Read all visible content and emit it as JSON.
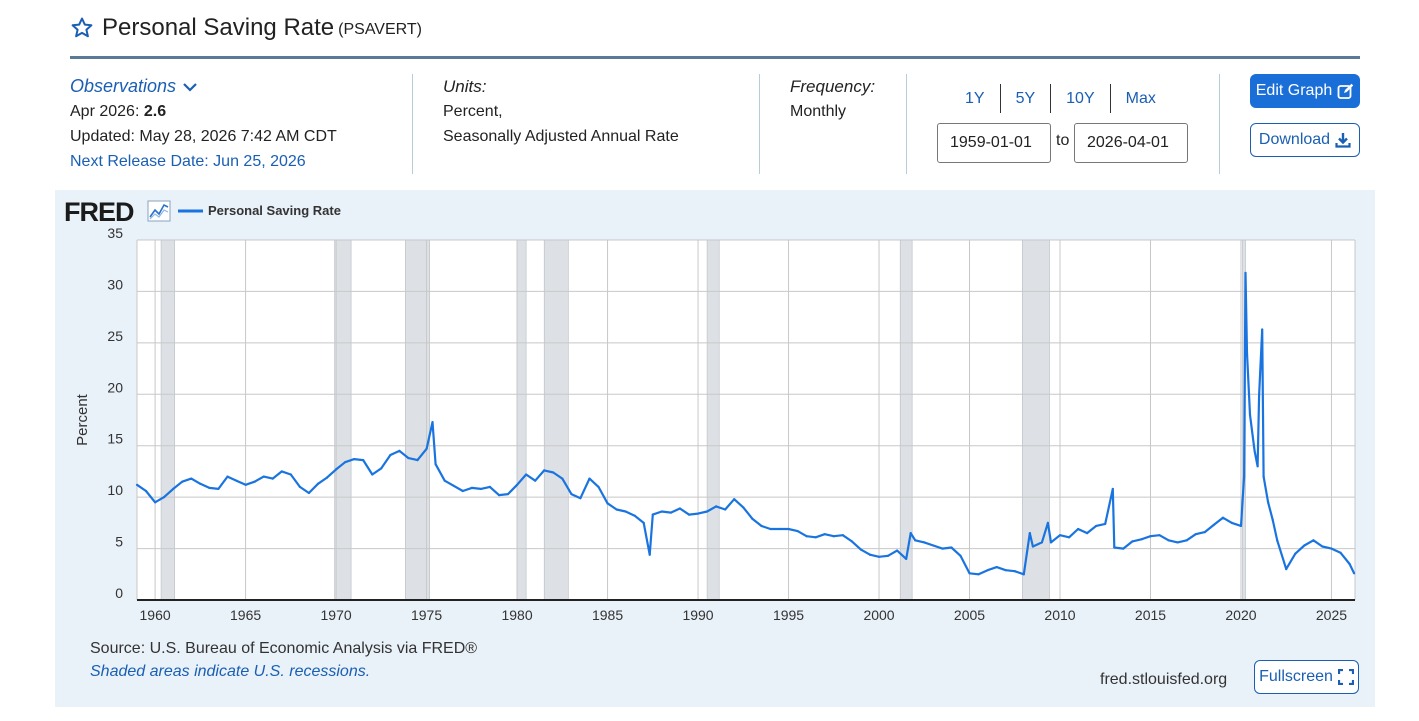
{
  "header": {
    "title": "Personal Saving Rate",
    "series_id": "(PSAVERT)"
  },
  "observations": {
    "toggle_label": "Observations",
    "latest_period": "Apr 2026:",
    "latest_value": "2.6",
    "updated": "Updated: May 28, 2026 7:42 AM CDT",
    "next_release": "Next Release Date: Jun 25, 2026"
  },
  "units": {
    "label": "Units:",
    "line1": "Percent,",
    "line2": "Seasonally Adjusted Annual Rate"
  },
  "frequency": {
    "label": "Frequency:",
    "value": "Monthly"
  },
  "range_buttons": [
    "1Y",
    "5Y",
    "10Y",
    "Max"
  ],
  "dates": {
    "start": "1959-01-01",
    "to_label": "to",
    "end": "2026-04-01"
  },
  "buttons": {
    "edit_graph": "Edit Graph",
    "download": "Download",
    "fullscreen": "Fullscreen"
  },
  "footer": {
    "source": "Source: U.S. Bureau of Economic Analysis via FRED®",
    "recession_note": "Shaded areas indicate U.S. recessions.",
    "site": "fred.stlouisfed.org"
  },
  "colors": {
    "accent": "#1a6ed8",
    "link": "#1a5fb4",
    "series_line": "#1a74e0",
    "recession_shade": "#dde1e5",
    "panel_bg": "#e9f1f9"
  },
  "chart_data": {
    "type": "line",
    "logo": "FRED",
    "ylabel": "Percent",
    "xlim": [
      1959.0,
      2026.3
    ],
    "ylim": [
      0,
      35
    ],
    "y_ticks": [
      0,
      5,
      10,
      15,
      20,
      25,
      30,
      35
    ],
    "x_ticks": [
      1960,
      1965,
      1970,
      1975,
      1980,
      1985,
      1990,
      1995,
      2000,
      2005,
      2010,
      2015,
      2020,
      2025
    ],
    "grid": true,
    "legend_position": "top-left",
    "recessions": [
      [
        1960.33,
        1961.08
      ],
      [
        1969.92,
        1970.83
      ],
      [
        1973.83,
        1975.17
      ],
      [
        1980.0,
        1980.5
      ],
      [
        1981.5,
        1982.83
      ],
      [
        1990.5,
        1991.17
      ],
      [
        2001.17,
        2001.83
      ],
      [
        2007.92,
        2009.42
      ],
      [
        2020.08,
        2020.25
      ]
    ],
    "series": [
      {
        "name": "Personal Saving Rate",
        "x": [
          1959.0,
          1959.5,
          1960.0,
          1960.5,
          1961.0,
          1961.5,
          1962.0,
          1962.5,
          1963.0,
          1963.5,
          1964.0,
          1964.5,
          1965.0,
          1965.5,
          1966.0,
          1966.5,
          1967.0,
          1967.5,
          1968.0,
          1968.5,
          1969.0,
          1969.5,
          1970.0,
          1970.5,
          1971.0,
          1971.5,
          1972.0,
          1972.5,
          1973.0,
          1973.5,
          1974.0,
          1974.5,
          1975.0,
          1975.33,
          1975.5,
          1976.0,
          1976.5,
          1977.0,
          1977.5,
          1978.0,
          1978.5,
          1979.0,
          1979.5,
          1980.0,
          1980.5,
          1981.0,
          1981.5,
          1982.0,
          1982.5,
          1983.0,
          1983.5,
          1984.0,
          1984.5,
          1985.0,
          1985.5,
          1986.0,
          1986.5,
          1987.0,
          1987.33,
          1987.5,
          1988.0,
          1988.5,
          1989.0,
          1989.5,
          1990.0,
          1990.5,
          1991.0,
          1991.5,
          1992.0,
          1992.5,
          1993.0,
          1993.5,
          1994.0,
          1994.5,
          1995.0,
          1995.5,
          1996.0,
          1996.5,
          1997.0,
          1997.5,
          1998.0,
          1998.5,
          1999.0,
          1999.5,
          2000.0,
          2000.5,
          2001.0,
          2001.5,
          2001.75,
          2002.0,
          2002.5,
          2003.0,
          2003.5,
          2004.0,
          2004.5,
          2005.0,
          2005.5,
          2006.0,
          2006.5,
          2007.0,
          2007.5,
          2008.0,
          2008.33,
          2008.5,
          2009.0,
          2009.33,
          2009.5,
          2010.0,
          2010.5,
          2011.0,
          2011.5,
          2012.0,
          2012.5,
          2012.92,
          2013.0,
          2013.5,
          2014.0,
          2014.5,
          2015.0,
          2015.5,
          2016.0,
          2016.5,
          2017.0,
          2017.5,
          2018.0,
          2018.5,
          2019.0,
          2019.5,
          2020.0,
          2020.17,
          2020.25,
          2020.33,
          2020.5,
          2020.75,
          2020.92,
          2021.0,
          2021.17,
          2021.25,
          2021.5,
          2021.75,
          2022.0,
          2022.5,
          2023.0,
          2023.5,
          2024.0,
          2024.5,
          2025.0,
          2025.5,
          2026.0,
          2026.25
        ],
        "values": [
          11.2,
          10.6,
          9.5,
          10.0,
          10.8,
          11.5,
          11.8,
          11.3,
          10.9,
          10.8,
          12.0,
          11.6,
          11.2,
          11.5,
          12.0,
          11.8,
          12.5,
          12.2,
          11.0,
          10.4,
          11.3,
          11.9,
          12.7,
          13.4,
          13.7,
          13.6,
          12.2,
          12.8,
          14.1,
          14.5,
          13.8,
          13.6,
          14.7,
          17.3,
          13.2,
          11.6,
          11.1,
          10.6,
          10.9,
          10.8,
          11.0,
          10.2,
          10.3,
          11.2,
          12.2,
          11.6,
          12.6,
          12.4,
          11.8,
          10.3,
          9.9,
          11.8,
          11.0,
          9.4,
          8.8,
          8.6,
          8.2,
          7.5,
          4.4,
          8.3,
          8.6,
          8.5,
          8.9,
          8.3,
          8.4,
          8.6,
          9.1,
          8.8,
          9.8,
          9.0,
          7.9,
          7.2,
          6.9,
          6.9,
          6.9,
          6.7,
          6.2,
          6.1,
          6.4,
          6.2,
          6.3,
          5.7,
          4.9,
          4.4,
          4.2,
          4.3,
          4.8,
          4.0,
          6.5,
          5.8,
          5.6,
          5.3,
          5.0,
          5.1,
          4.3,
          2.6,
          2.5,
          2.9,
          3.2,
          2.9,
          2.8,
          2.5,
          6.5,
          5.2,
          5.6,
          7.5,
          5.6,
          6.3,
          6.1,
          6.9,
          6.5,
          7.2,
          7.4,
          10.8,
          5.1,
          5.0,
          5.7,
          5.9,
          6.2,
          6.3,
          5.8,
          5.6,
          5.8,
          6.4,
          6.6,
          7.3,
          8.0,
          7.5,
          7.2,
          12.0,
          31.8,
          24.0,
          18.0,
          14.5,
          13.0,
          19.9,
          26.3,
          12.0,
          9.5,
          7.8,
          5.8,
          3.0,
          4.5,
          5.3,
          5.8,
          5.2,
          5.0,
          4.6,
          3.5,
          2.6
        ]
      }
    ]
  }
}
